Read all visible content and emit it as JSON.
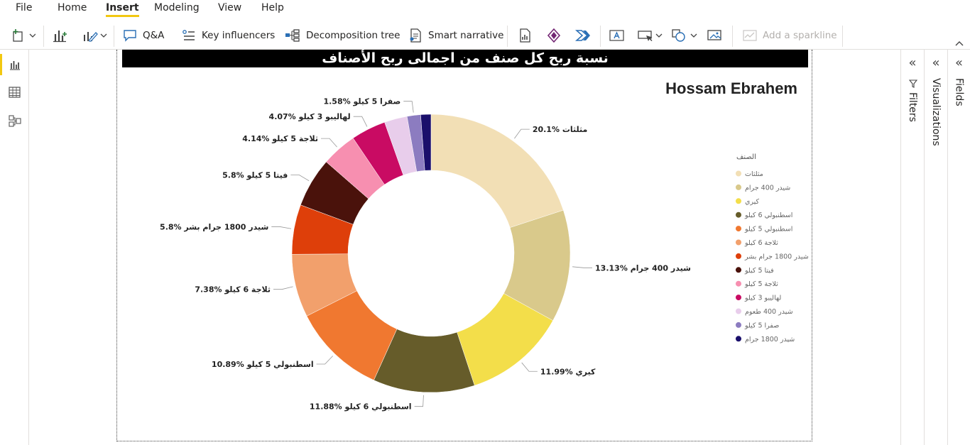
{
  "menu": {
    "items": [
      {
        "label": "File",
        "active": false
      },
      {
        "label": "Home",
        "active": false
      },
      {
        "label": "Insert",
        "active": true
      },
      {
        "label": "Modeling",
        "active": false
      },
      {
        "label": "View",
        "active": false
      },
      {
        "label": "Help",
        "active": false
      }
    ]
  },
  "ribbon": {
    "qa_label": "Q&A",
    "key_influencers_label": "Key influencers",
    "decomposition_tree_label": "Decomposition tree",
    "smart_narrative_label": "Smart narrative",
    "sparkline_label": "Add a sparkline"
  },
  "panes": {
    "filters_label": "Filters",
    "visualizations_label": "Visualizations",
    "fields_label": "Fields",
    "collapse_glyph": "«"
  },
  "visual": {
    "title": "نسبة ربح كل صنف من اجمالى ربح الأصناف",
    "author": "Hossam Ebrahem"
  },
  "chart_data": {
    "type": "donut",
    "legend_title": "الصنف",
    "legend_position": "right",
    "series": [
      {
        "name": "مثلثات",
        "value": 20.1,
        "label": "20.1% مثلثات",
        "color": "#F2DFB5"
      },
      {
        "name": "شيدر 400 جرام",
        "value": 13.13,
        "label": "13.13% شيدر 400 جرام",
        "color": "#D9C98B"
      },
      {
        "name": "كيري",
        "value": 11.99,
        "label": "11.99% كيري",
        "color": "#F3DE4A"
      },
      {
        "name": "اسطنبولي 6 كيلو",
        "value": 11.88,
        "label": "11.88% اسطنبولي 6 كيلو",
        "color": "#665C2A"
      },
      {
        "name": "اسطنبولي 5 كيلو",
        "value": 10.89,
        "label": "10.89% اسطنبولي 5 كيلو",
        "color": "#F07830"
      },
      {
        "name": "ثلاجة 6 كيلو",
        "value": 7.38,
        "label": "7.38% ثلاجة 6 كيلو",
        "color": "#F2A06C"
      },
      {
        "name": "شيدر 1800 جرام بشر",
        "value": 5.8,
        "label": "5.8% شيدر 1800 جرام بشر",
        "color": "#DE3F0A"
      },
      {
        "name": "فيتا 5 كيلو",
        "value": 5.8,
        "label": "5.8% فيتا 5 كيلو",
        "color": "#4A120B"
      },
      {
        "name": "ثلاجة 5 كيلو",
        "value": 4.14,
        "label": "4.14% ثلاجة 5 كيلو",
        "color": "#F78FB0"
      },
      {
        "name": "لهاليبو 3 كيلو",
        "value": 4.07,
        "label": "4.07% لهاليبو 3 كيلو",
        "color": "#C90B63"
      },
      {
        "name": "شيدر 400 طعوم",
        "value": 2.67,
        "label": "",
        "color": "#E8CDEB"
      },
      {
        "name": "صفرا 5 كيلو",
        "value": 1.58,
        "label": "1.58% صفرا 5 كيلو",
        "color": "#8C7CC0"
      },
      {
        "name": "شيدر 1800 جرام",
        "value": 1.2,
        "label": "",
        "color": "#1A0F6B"
      }
    ]
  }
}
